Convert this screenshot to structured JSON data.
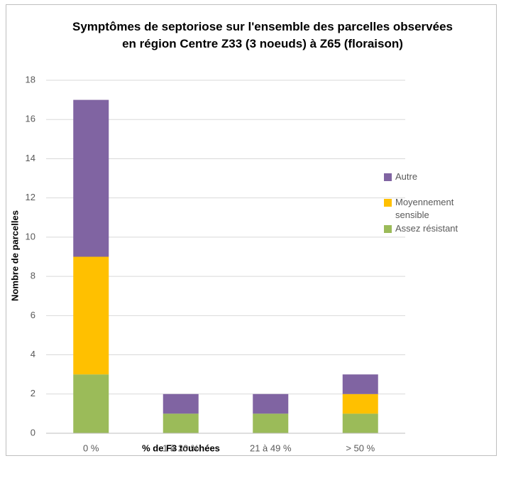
{
  "chart_data": {
    "type": "bar",
    "stacked": true,
    "title": "Symptômes de septoriose sur l'ensemble des parcelles observées en région Centre Z33 (3 noeuds) à Z65 (floraison)",
    "xlabel": "% de F3 touchées",
    "ylabel": "Nombre de parcelles",
    "categories": [
      "0 %",
      "1 à 20 %",
      "21 à 49 %",
      "> 50 %"
    ],
    "series": [
      {
        "name": "Assez résistant",
        "color": "#9bbb59",
        "values": [
          3,
          1,
          1,
          1
        ]
      },
      {
        "name": "Moyennement sensible",
        "color": "#ffc000",
        "values": [
          6,
          0,
          0,
          1
        ]
      },
      {
        "name": "Autre",
        "color": "#8064a2",
        "values": [
          8,
          1,
          1,
          1
        ]
      }
    ],
    "ylim": [
      0,
      18
    ],
    "yticks": [
      0,
      2,
      4,
      6,
      8,
      10,
      12,
      14,
      16,
      18
    ],
    "grid": true,
    "legend": "right"
  }
}
